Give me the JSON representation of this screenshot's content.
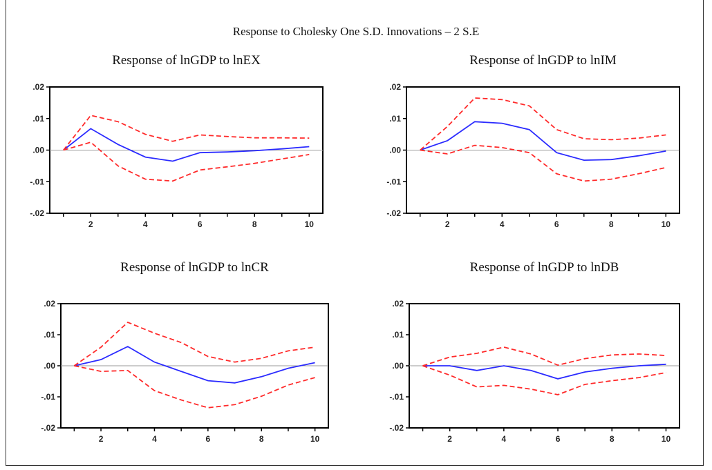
{
  "figure": {
    "title": "Response to Cholesky One S.D. Innovations – 2 S.E"
  },
  "colors": {
    "response": "#2b2bff",
    "bands": "#ff2a2a",
    "zero_line": "#9a9a9a",
    "axis": "#000000"
  },
  "chart_data": [
    {
      "type": "line",
      "title": "Response of lnGDP to lnEX",
      "x": [
        1,
        2,
        3,
        4,
        5,
        6,
        7,
        8,
        9,
        10
      ],
      "xticks": [
        2,
        4,
        6,
        8,
        10
      ],
      "xlim": [
        0.5,
        10.5
      ],
      "ylim": [
        -0.02,
        0.02
      ],
      "yticks": [
        ".02",
        ".01",
        ".00",
        "-.01",
        "-.02"
      ],
      "ytick_values": [
        0.02,
        0.01,
        0.0,
        -0.01,
        -0.02
      ],
      "grid": false,
      "series": [
        {
          "role": "response",
          "values": [
            0.0,
            0.0068,
            0.0018,
            -0.0022,
            -0.0035,
            -0.0008,
            -0.0006,
            -0.0002,
            0.0004,
            0.0011
          ]
        },
        {
          "role": "upper",
          "values": [
            0.0,
            0.011,
            0.009,
            0.005,
            0.0028,
            0.0048,
            0.0043,
            0.0039,
            0.0039,
            0.0038
          ]
        },
        {
          "role": "lower",
          "values": [
            0.0,
            0.0025,
            -0.005,
            -0.0092,
            -0.0098,
            -0.0063,
            -0.0053,
            -0.0042,
            -0.0028,
            -0.0014
          ]
        }
      ]
    },
    {
      "type": "line",
      "title": "Response of lnGDP to lnIM",
      "x": [
        1,
        2,
        3,
        4,
        5,
        6,
        7,
        8,
        9,
        10
      ],
      "xticks": [
        2,
        4,
        6,
        8,
        10
      ],
      "xlim": [
        0.5,
        10.5
      ],
      "ylim": [
        -0.02,
        0.02
      ],
      "yticks": [
        ".02",
        ".01",
        ".00",
        "-.01",
        "-.02"
      ],
      "ytick_values": [
        0.02,
        0.01,
        0.0,
        -0.01,
        -0.02
      ],
      "grid": false,
      "series": [
        {
          "role": "response",
          "values": [
            0.0,
            0.003,
            0.009,
            0.0085,
            0.0065,
            -0.0008,
            -0.0032,
            -0.003,
            -0.0018,
            -0.0003
          ]
        },
        {
          "role": "upper",
          "values": [
            0.0,
            0.0075,
            0.0165,
            0.016,
            0.014,
            0.0065,
            0.0036,
            0.0033,
            0.0038,
            0.0048
          ]
        },
        {
          "role": "lower",
          "values": [
            0.0,
            -0.0012,
            0.0015,
            0.0008,
            -0.0008,
            -0.0075,
            -0.0098,
            -0.0092,
            -0.0075,
            -0.0055
          ]
        }
      ]
    },
    {
      "type": "line",
      "title": "Response of lnGDP to lnCR",
      "x": [
        1,
        2,
        3,
        4,
        5,
        6,
        7,
        8,
        9,
        10
      ],
      "xticks": [
        2,
        4,
        6,
        8,
        10
      ],
      "xlim": [
        0.5,
        10.5
      ],
      "ylim": [
        -0.02,
        0.02
      ],
      "yticks": [
        ".02",
        ".01",
        ".00",
        "-.01",
        "-.02"
      ],
      "ytick_values": [
        0.02,
        0.01,
        0.0,
        -0.01,
        -0.02
      ],
      "grid": false,
      "series": [
        {
          "role": "response",
          "values": [
            0.0,
            0.002,
            0.0062,
            0.0012,
            -0.0018,
            -0.0048,
            -0.0055,
            -0.0035,
            -0.0008,
            0.001
          ]
        },
        {
          "role": "upper",
          "values": [
            0.0,
            0.006,
            0.014,
            0.0105,
            0.0075,
            0.003,
            0.0012,
            0.0024,
            0.0048,
            0.006
          ]
        },
        {
          "role": "lower",
          "values": [
            0.0,
            -0.0018,
            -0.0015,
            -0.008,
            -0.011,
            -0.0135,
            -0.0125,
            -0.0098,
            -0.0062,
            -0.0038
          ]
        }
      ]
    },
    {
      "type": "line",
      "title": "Response of lnGDP to lnDB",
      "x": [
        1,
        2,
        3,
        4,
        5,
        6,
        7,
        8,
        9,
        10
      ],
      "xticks": [
        2,
        4,
        6,
        8,
        10
      ],
      "xlim": [
        0.5,
        10.5
      ],
      "ylim": [
        -0.02,
        0.02
      ],
      "yticks": [
        ".02",
        ".01",
        ".00",
        "-.01",
        "-.02"
      ],
      "ytick_values": [
        0.02,
        0.01,
        0.0,
        -0.01,
        -0.02
      ],
      "grid": false,
      "series": [
        {
          "role": "response",
          "values": [
            0.0,
            0.0,
            -0.0015,
            0.0,
            -0.0015,
            -0.0042,
            -0.002,
            -0.0008,
            0.0,
            0.0005
          ]
        },
        {
          "role": "upper",
          "values": [
            0.0,
            0.0028,
            0.004,
            0.006,
            0.0038,
            0.0002,
            0.0023,
            0.0035,
            0.0038,
            0.0033
          ]
        },
        {
          "role": "lower",
          "values": [
            0.0,
            -0.003,
            -0.0068,
            -0.0063,
            -0.0075,
            -0.0093,
            -0.006,
            -0.0048,
            -0.0038,
            -0.0022
          ]
        }
      ]
    }
  ]
}
